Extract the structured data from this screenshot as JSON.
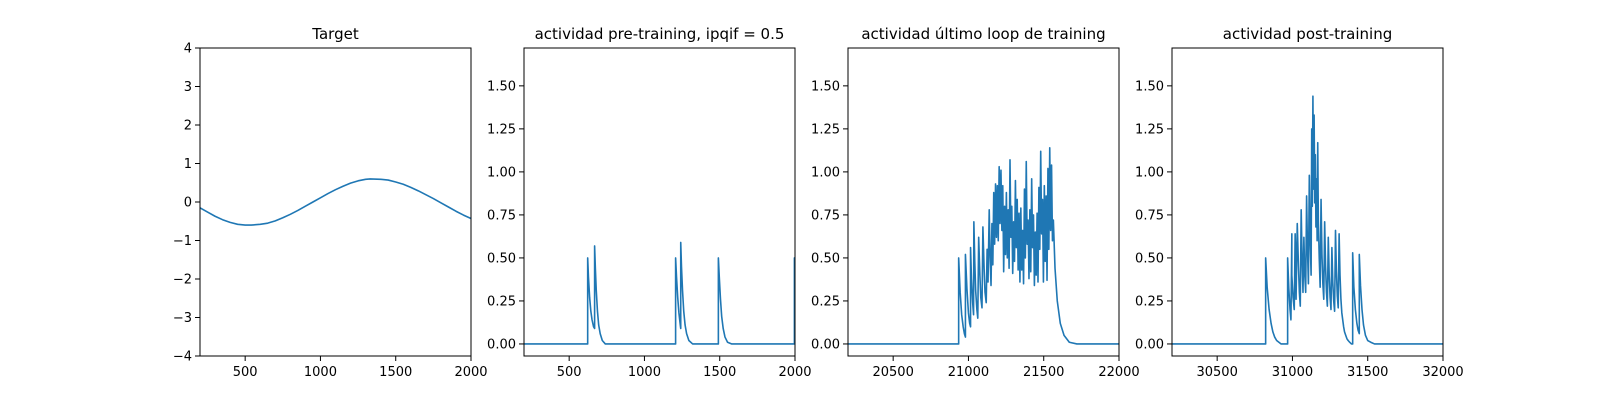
{
  "figure": {
    "background": "#ffffff",
    "line_color": "#1f77b4"
  },
  "chart_data": [
    {
      "type": "line",
      "title": "Target",
      "xlabel": "",
      "ylabel": "",
      "xlim": [
        200,
        2000
      ],
      "ylim": [
        -4,
        4
      ],
      "x_ticks": [
        500,
        1000,
        1500,
        2000
      ],
      "y_ticks": [
        -4,
        -3,
        -2,
        -1,
        0,
        1,
        2,
        3,
        4
      ],
      "x_tick_labels": [
        "500",
        "1000",
        "1500",
        "2000"
      ],
      "y_tick_labels": [
        "−4",
        "−3",
        "−2",
        "−1",
        "0",
        "1",
        "2",
        "3",
        "4"
      ],
      "grid": false,
      "series": [
        {
          "color": "#1f77b4",
          "x": [
            200,
            250,
            300,
            350,
            400,
            450,
            500,
            540,
            600,
            650,
            700,
            750,
            800,
            850,
            900,
            950,
            1000,
            1050,
            1100,
            1150,
            1200,
            1250,
            1300,
            1330,
            1400,
            1450,
            1500,
            1550,
            1600,
            1650,
            1700,
            1750,
            1800,
            1850,
            1900,
            1950,
            2000
          ],
          "y": [
            -0.15,
            -0.26,
            -0.37,
            -0.46,
            -0.53,
            -0.58,
            -0.6,
            -0.6,
            -0.58,
            -0.55,
            -0.49,
            -0.41,
            -0.32,
            -0.22,
            -0.11,
            0.0,
            0.11,
            0.22,
            0.32,
            0.41,
            0.49,
            0.55,
            0.59,
            0.6,
            0.59,
            0.57,
            0.52,
            0.46,
            0.38,
            0.29,
            0.19,
            0.09,
            -0.02,
            -0.13,
            -0.24,
            -0.34,
            -0.43
          ]
        }
      ]
    },
    {
      "type": "line",
      "title": "actividad pre-training, ipqif = 0.5",
      "xlabel": "",
      "ylabel": "",
      "xlim": [
        200,
        2000
      ],
      "ylim": [
        -0.07,
        1.72
      ],
      "x_ticks": [
        500,
        1000,
        1500,
        2000
      ],
      "y_ticks": [
        0.0,
        0.25,
        0.5,
        0.75,
        1.0,
        1.25,
        1.5
      ],
      "x_tick_labels": [
        "500",
        "1000",
        "1500",
        "2000"
      ],
      "y_tick_labels": [
        "0.00",
        "0.25",
        "0.50",
        "0.75",
        "1.00",
        "1.25",
        "1.50"
      ],
      "grid": false,
      "series": [
        {
          "color": "#1f77b4",
          "x": [
            200,
            623,
            623,
            628,
            636,
            644,
            652,
            662,
            669,
            669,
            674,
            680,
            688,
            696,
            706,
            720,
            740,
            1207,
            1207,
            1213,
            1221,
            1229,
            1238,
            1241,
            1241,
            1246,
            1253,
            1261,
            1270,
            1280,
            1295,
            1320,
            1491,
            1491,
            1497,
            1505,
            1513,
            1523,
            1535,
            1552,
            1580,
            1996,
            1996,
            2000
          ],
          "y": [
            0.0,
            0.0,
            0.5,
            0.39,
            0.27,
            0.19,
            0.14,
            0.1,
            0.09,
            0.57,
            0.44,
            0.31,
            0.19,
            0.11,
            0.06,
            0.02,
            0.0,
            0.0,
            0.5,
            0.39,
            0.27,
            0.18,
            0.11,
            0.09,
            0.59,
            0.45,
            0.31,
            0.19,
            0.11,
            0.06,
            0.02,
            0.0,
            0.0,
            0.5,
            0.39,
            0.26,
            0.16,
            0.09,
            0.04,
            0.01,
            0.0,
            0.0,
            0.5,
            0.27
          ]
        }
      ]
    },
    {
      "type": "line",
      "title": "actividad último loop de training",
      "xlabel": "",
      "ylabel": "",
      "xlim": [
        20200,
        22000
      ],
      "ylim": [
        -0.07,
        1.72
      ],
      "x_ticks": [
        20500,
        21000,
        21500,
        22000
      ],
      "y_ticks": [
        0.0,
        0.25,
        0.5,
        0.75,
        1.0,
        1.25,
        1.5
      ],
      "x_tick_labels": [
        "20500",
        "21000",
        "21500",
        "22000"
      ],
      "y_tick_labels": [
        "0.00",
        "0.25",
        "0.50",
        "0.75",
        "1.00",
        "1.25",
        "1.50"
      ],
      "grid": false,
      "series": [
        {
          "color": "#1f77b4",
          "x": [
            20200,
            20935,
            20935,
            20945,
            20955,
            20965,
            20973,
            20980,
            20980,
            20990,
            21000,
            21008,
            21014,
            21014,
            21020,
            21028,
            21034,
            21036,
            21042,
            21048,
            21056,
            21062,
            21068,
            21076,
            21082,
            21090,
            21096,
            21104,
            21110,
            21118,
            21124,
            21130,
            21138,
            21144,
            21150,
            21156,
            21162,
            21168,
            21174,
            21180,
            21186,
            21192,
            21198,
            21204,
            21210,
            21216,
            21222,
            21228,
            21234,
            21240,
            21246,
            21252,
            21258,
            21264,
            21270,
            21276,
            21282,
            21288,
            21294,
            21300,
            21306,
            21312,
            21318,
            21324,
            21330,
            21336,
            21342,
            21348,
            21354,
            21360,
            21366,
            21372,
            21378,
            21384,
            21390,
            21396,
            21402,
            21408,
            21414,
            21420,
            21426,
            21432,
            21438,
            21444,
            21450,
            21456,
            21462,
            21468,
            21474,
            21480,
            21486,
            21492,
            21498,
            21504,
            21510,
            21516,
            21522,
            21528,
            21534,
            21540,
            21546,
            21552,
            21558,
            21564,
            21575,
            21590,
            21610,
            21635,
            21670,
            21720,
            22000
          ],
          "y": [
            0.0,
            0.0,
            0.5,
            0.3,
            0.17,
            0.1,
            0.06,
            0.04,
            0.52,
            0.32,
            0.18,
            0.12,
            0.1,
            0.56,
            0.38,
            0.24,
            0.17,
            0.71,
            0.48,
            0.31,
            0.2,
            0.15,
            0.62,
            0.4,
            0.27,
            0.21,
            0.68,
            0.44,
            0.3,
            0.24,
            0.55,
            0.36,
            0.78,
            0.5,
            0.34,
            0.7,
            0.46,
            0.88,
            0.58,
            0.93,
            0.62,
            0.92,
            0.6,
            1.03,
            0.7,
            1.01,
            0.66,
            0.92,
            0.42,
            0.8,
            0.52,
            0.88,
            0.5,
            0.78,
            0.44,
            1.07,
            0.62,
            0.8,
            0.41,
            0.71,
            0.48,
            0.95,
            0.56,
            0.84,
            0.43,
            0.76,
            0.36,
            0.79,
            0.43,
            0.66,
            0.35,
            0.9,
            0.5,
            1.06,
            0.58,
            0.72,
            0.38,
            0.78,
            0.42,
            0.96,
            0.56,
            0.75,
            0.34,
            0.65,
            0.4,
            0.76,
            0.36,
            0.91,
            0.55,
            1.12,
            0.64,
            0.84,
            0.36,
            0.92,
            0.48,
            0.86,
            0.37,
            1.02,
            0.55,
            1.14,
            0.66,
            1.04,
            0.6,
            0.72,
            0.44,
            0.25,
            0.12,
            0.05,
            0.01,
            0.0,
            0.0
          ]
        }
      ]
    },
    {
      "type": "line",
      "title": "actividad post-training",
      "xlabel": "",
      "ylabel": "",
      "xlim": [
        30200,
        32000
      ],
      "ylim": [
        -0.07,
        1.72
      ],
      "x_ticks": [
        30500,
        31000,
        31500,
        32000
      ],
      "y_ticks": [
        0.0,
        0.25,
        0.5,
        0.75,
        1.0,
        1.25,
        1.5
      ],
      "x_tick_labels": [
        "30500",
        "31000",
        "31500",
        "32000"
      ],
      "y_tick_labels": [
        "0.00",
        "0.25",
        "0.50",
        "0.75",
        "1.00",
        "1.25",
        "1.50"
      ],
      "grid": false,
      "series": [
        {
          "color": "#1f77b4",
          "x": [
            30200,
            30822,
            30822,
            30832,
            30845,
            30858,
            30870,
            30882,
            30895,
            30910,
            30925,
            30942,
            30958,
            30968,
            30968,
            30976,
            30984,
            30990,
            30996,
            30996,
            31004,
            31012,
            31018,
            31024,
            31024,
            31032,
            31040,
            31046,
            31052,
            31058,
            31064,
            31070,
            31076,
            31082,
            31088,
            31094,
            31100,
            31106,
            31112,
            31118,
            31124,
            31128,
            31132,
            31136,
            31140,
            31144,
            31148,
            31152,
            31156,
            31160,
            31164,
            31168,
            31172,
            31178,
            31184,
            31190,
            31196,
            31202,
            31208,
            31214,
            31220,
            31226,
            31232,
            31238,
            31244,
            31250,
            31256,
            31262,
            31268,
            31274,
            31280,
            31286,
            31292,
            31298,
            31304,
            31310,
            31316,
            31322,
            31328,
            31334,
            31340,
            31346,
            31354,
            31362,
            31370,
            31380,
            31392,
            31400,
            31400,
            31408,
            31418,
            31428,
            31436,
            31444,
            31444,
            31452,
            31462,
            31472,
            31485,
            31500,
            31520,
            31545,
            31580,
            32000
          ],
          "y": [
            0.0,
            0.0,
            0.5,
            0.33,
            0.2,
            0.12,
            0.07,
            0.04,
            0.02,
            0.01,
            0.0,
            0.0,
            0.0,
            0.0,
            0.5,
            0.32,
            0.2,
            0.14,
            0.64,
            0.4,
            0.27,
            0.2,
            0.64,
            0.4,
            0.26,
            0.7,
            0.45,
            0.3,
            0.22,
            0.78,
            0.5,
            0.3,
            0.62,
            0.4,
            0.3,
            0.86,
            0.55,
            0.35,
            0.98,
            0.6,
            0.4,
            1.25,
            0.8,
            1.44,
            0.9,
            1.33,
            0.82,
            1.1,
            0.68,
            0.96,
            0.6,
            1.17,
            0.72,
            0.5,
            0.33,
            0.84,
            0.52,
            0.35,
            0.26,
            0.71,
            0.45,
            0.3,
            0.22,
            0.62,
            0.4,
            0.27,
            0.2,
            0.56,
            0.36,
            0.25,
            0.19,
            0.66,
            0.42,
            0.28,
            0.21,
            0.64,
            0.4,
            0.26,
            0.18,
            0.14,
            0.1,
            0.07,
            0.05,
            0.03,
            0.02,
            0.01,
            0.0,
            0.0,
            0.53,
            0.33,
            0.2,
            0.12,
            0.08,
            0.06,
            0.52,
            0.34,
            0.2,
            0.11,
            0.05,
            0.02,
            0.01,
            0.0,
            0.0,
            0.0
          ]
        }
      ]
    }
  ]
}
